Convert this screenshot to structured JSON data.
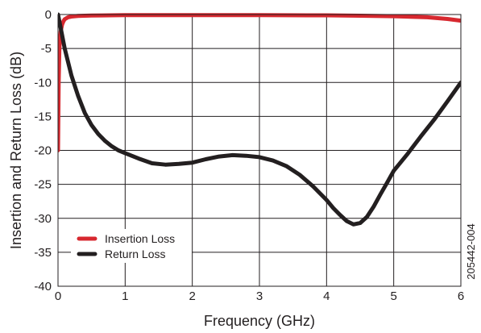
{
  "chart_data": {
    "type": "line",
    "title": "",
    "xlabel": "Frequency (GHz)",
    "ylabel": "Insertion and Return Loss (dB)",
    "xlim": [
      0,
      6
    ],
    "ylim": [
      -40,
      0
    ],
    "x_ticks": [
      0,
      1,
      2,
      3,
      4,
      5,
      6
    ],
    "y_ticks": [
      0,
      -5,
      -10,
      -15,
      -20,
      -25,
      -30,
      -35,
      -40
    ],
    "x_tick_labels": [
      "0",
      "1",
      "2",
      "3",
      "4",
      "5",
      "6"
    ],
    "y_tick_labels": [
      "0",
      "-5",
      "-10",
      "-15",
      "-20",
      "-25",
      "-30",
      "-35",
      "-40"
    ],
    "grid": true,
    "legend_position": "bottom-left",
    "figure_id": "205442-004",
    "series": [
      {
        "name": "Insertion Loss",
        "color": "#d7282f",
        "x": [
          0.0,
          0.01,
          0.02,
          0.04,
          0.06,
          0.08,
          0.1,
          0.15,
          0.2,
          0.3,
          0.5,
          1.0,
          2.0,
          3.0,
          4.0,
          4.5,
          5.0,
          5.5,
          5.8,
          6.0
        ],
        "y": [
          -20.0,
          -10.0,
          -5.0,
          -2.5,
          -1.5,
          -1.0,
          -0.7,
          -0.4,
          -0.3,
          -0.2,
          -0.15,
          -0.1,
          -0.1,
          -0.1,
          -0.12,
          -0.18,
          -0.25,
          -0.4,
          -0.65,
          -0.9
        ]
      },
      {
        "name": "Return Loss",
        "color": "#231f20",
        "x": [
          0.0,
          0.05,
          0.1,
          0.2,
          0.3,
          0.4,
          0.5,
          0.6,
          0.7,
          0.8,
          0.9,
          1.0,
          1.2,
          1.4,
          1.6,
          1.8,
          2.0,
          2.2,
          2.4,
          2.6,
          2.8,
          3.0,
          3.2,
          3.4,
          3.6,
          3.8,
          4.0,
          4.1,
          4.2,
          4.3,
          4.4,
          4.5,
          4.6,
          4.7,
          4.8,
          4.9,
          5.0,
          5.2,
          5.4,
          5.6,
          5.8,
          6.0
        ],
        "y": [
          0.0,
          -2.5,
          -5.0,
          -9.0,
          -12.0,
          -14.5,
          -16.3,
          -17.6,
          -18.6,
          -19.4,
          -20.0,
          -20.4,
          -21.2,
          -21.9,
          -22.1,
          -22.0,
          -21.8,
          -21.3,
          -20.9,
          -20.7,
          -20.8,
          -21.0,
          -21.5,
          -22.3,
          -23.6,
          -25.3,
          -27.3,
          -28.5,
          -29.5,
          -30.4,
          -30.9,
          -30.7,
          -29.8,
          -28.3,
          -26.5,
          -24.8,
          -23.0,
          -20.6,
          -18.0,
          -15.5,
          -12.8,
          -10.0
        ]
      }
    ]
  }
}
